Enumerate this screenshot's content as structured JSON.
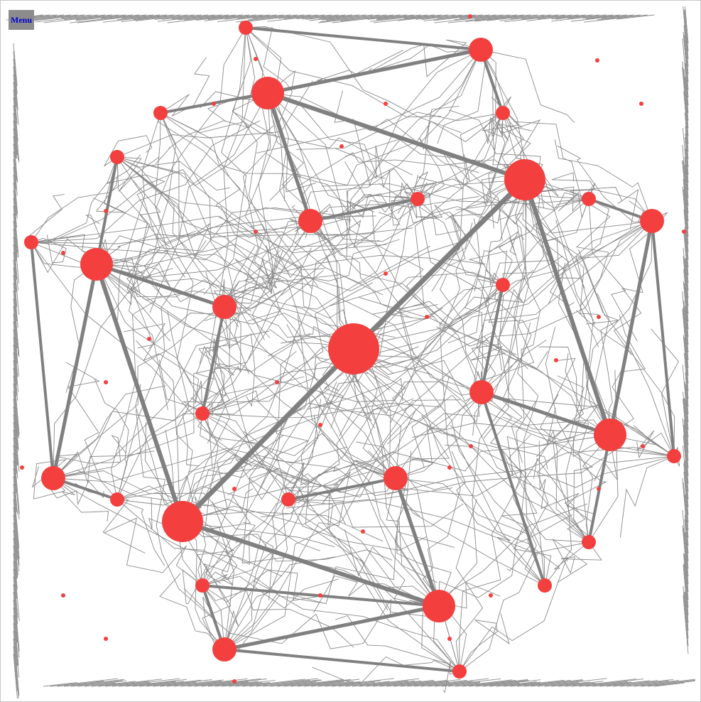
{
  "menu": {
    "label": "Menu"
  },
  "colors": {
    "node": "#f43f3f",
    "edge": "#808080",
    "background": "#ffffff",
    "menu_bg": "#8c8c8c",
    "menu_text": "#0000cc"
  },
  "graph": {
    "nodes": [
      {
        "id": "n-center",
        "size": "large"
      },
      {
        "id": "n-ne-hub",
        "size": "large"
      },
      {
        "id": "n-sw-hub",
        "size": "large"
      },
      {
        "id": "n-top-hub",
        "size": "medium"
      },
      {
        "id": "n-left-hub",
        "size": "medium"
      },
      {
        "id": "n-right-hub",
        "size": "medium"
      },
      {
        "id": "n-bottom-hub",
        "size": "medium"
      },
      {
        "id": "n-a",
        "size": "medium"
      },
      {
        "id": "n-b",
        "size": "medium"
      },
      {
        "id": "n-c",
        "size": "medium"
      },
      {
        "id": "n-d",
        "size": "medium"
      },
      {
        "id": "n-e",
        "size": "medium"
      },
      {
        "id": "n-f",
        "size": "medium"
      },
      {
        "id": "n-g",
        "size": "medium"
      },
      {
        "id": "n-h",
        "size": "medium"
      },
      {
        "id": "n-i",
        "size": "small"
      },
      {
        "id": "n-j",
        "size": "small"
      },
      {
        "id": "n-k",
        "size": "small"
      },
      {
        "id": "n-l",
        "size": "small"
      },
      {
        "id": "n-m",
        "size": "small"
      },
      {
        "id": "n-n",
        "size": "small"
      },
      {
        "id": "n-o",
        "size": "small"
      },
      {
        "id": "n-p",
        "size": "small"
      },
      {
        "id": "n-q",
        "size": "small"
      },
      {
        "id": "n-r",
        "size": "small"
      },
      {
        "id": "n-s",
        "size": "small"
      },
      {
        "id": "n-t",
        "size": "small"
      },
      {
        "id": "n-u",
        "size": "small"
      }
    ]
  }
}
